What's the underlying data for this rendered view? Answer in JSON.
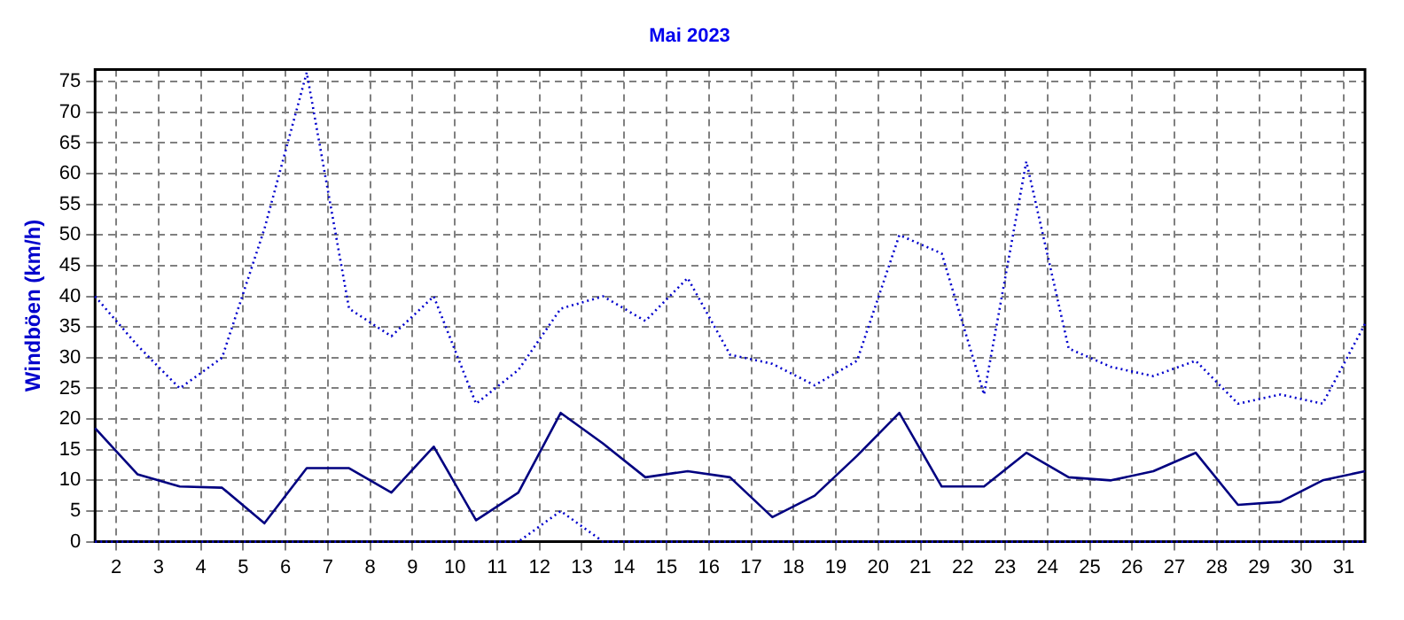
{
  "chart_data": {
    "type": "line",
    "title": "Mai 2023",
    "ylabel": "Windböen (km/h)",
    "x": [
      1.5,
      2.5,
      3.5,
      4.5,
      5.5,
      6.5,
      7.5,
      8.5,
      9.5,
      10.5,
      11.5,
      12.5,
      13.5,
      14.5,
      15.5,
      16.5,
      17.5,
      18.5,
      19.5,
      20.5,
      21.5,
      22.5,
      23.5,
      24.5,
      25.5,
      26.5,
      27.5,
      28.5,
      29.5,
      30.5,
      31.5
    ],
    "series": [
      {
        "color": "#0000cc",
        "line_style": "dotted",
        "values": [
          40,
          32,
          25,
          30,
          51,
          76.5,
          38,
          33.5,
          40,
          22.5,
          28,
          38,
          40,
          36,
          43,
          30.5,
          29,
          25.5,
          29.5,
          50,
          47,
          24,
          62,
          31.5,
          28.5,
          27,
          29.5,
          22.5,
          24,
          22.5,
          35.5
        ]
      },
      {
        "color": "#000080",
        "line_style": "solid",
        "values": [
          18.5,
          11,
          9,
          8.8,
          3,
          12,
          12,
          8,
          15.5,
          3.5,
          8,
          21,
          16,
          10.5,
          11.5,
          10.5,
          4,
          7.5,
          14,
          21,
          9,
          9,
          14.5,
          10.5,
          10,
          11.5,
          14.5,
          6,
          6.5,
          10,
          11.5
        ]
      },
      {
        "color": "#0000cc",
        "line_style": "dotted",
        "values": [
          0,
          0,
          0,
          0,
          0,
          0,
          0,
          0,
          0,
          0,
          0,
          5,
          0,
          0,
          0,
          0,
          0,
          0,
          0,
          0,
          0,
          0,
          0,
          0,
          0,
          0,
          0,
          0,
          0,
          0,
          0
        ]
      }
    ],
    "xlim": [
      1.5,
      31.5
    ],
    "xticks": [
      2,
      3,
      4,
      5,
      6,
      7,
      8,
      9,
      10,
      11,
      12,
      13,
      14,
      15,
      16,
      17,
      18,
      19,
      20,
      21,
      22,
      23,
      24,
      25,
      26,
      27,
      28,
      29,
      30,
      31
    ],
    "ylim": [
      0,
      77
    ],
    "yticks": [
      0,
      5,
      10,
      15,
      20,
      25,
      30,
      35,
      40,
      45,
      50,
      55,
      60,
      65,
      70,
      75
    ],
    "grid": true,
    "legend": false,
    "marker": "none"
  }
}
